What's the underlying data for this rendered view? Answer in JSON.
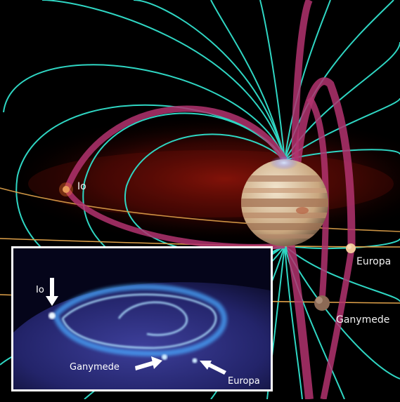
{
  "labels": {
    "io": "Io",
    "europa": "Europa",
    "ganymede": "Ganymede"
  },
  "inset": {
    "io": "Io",
    "ganymede": "Ganymede",
    "europa": "Europa"
  },
  "colors": {
    "background": "#000000",
    "field_lines": "#2fd6c3",
    "flux_tubes": "#b2326e",
    "plasma_glow": "#9a1208",
    "orbits": "#e0a24a",
    "aurora": "#4aa8ff",
    "inset_border": "#ffffff"
  }
}
